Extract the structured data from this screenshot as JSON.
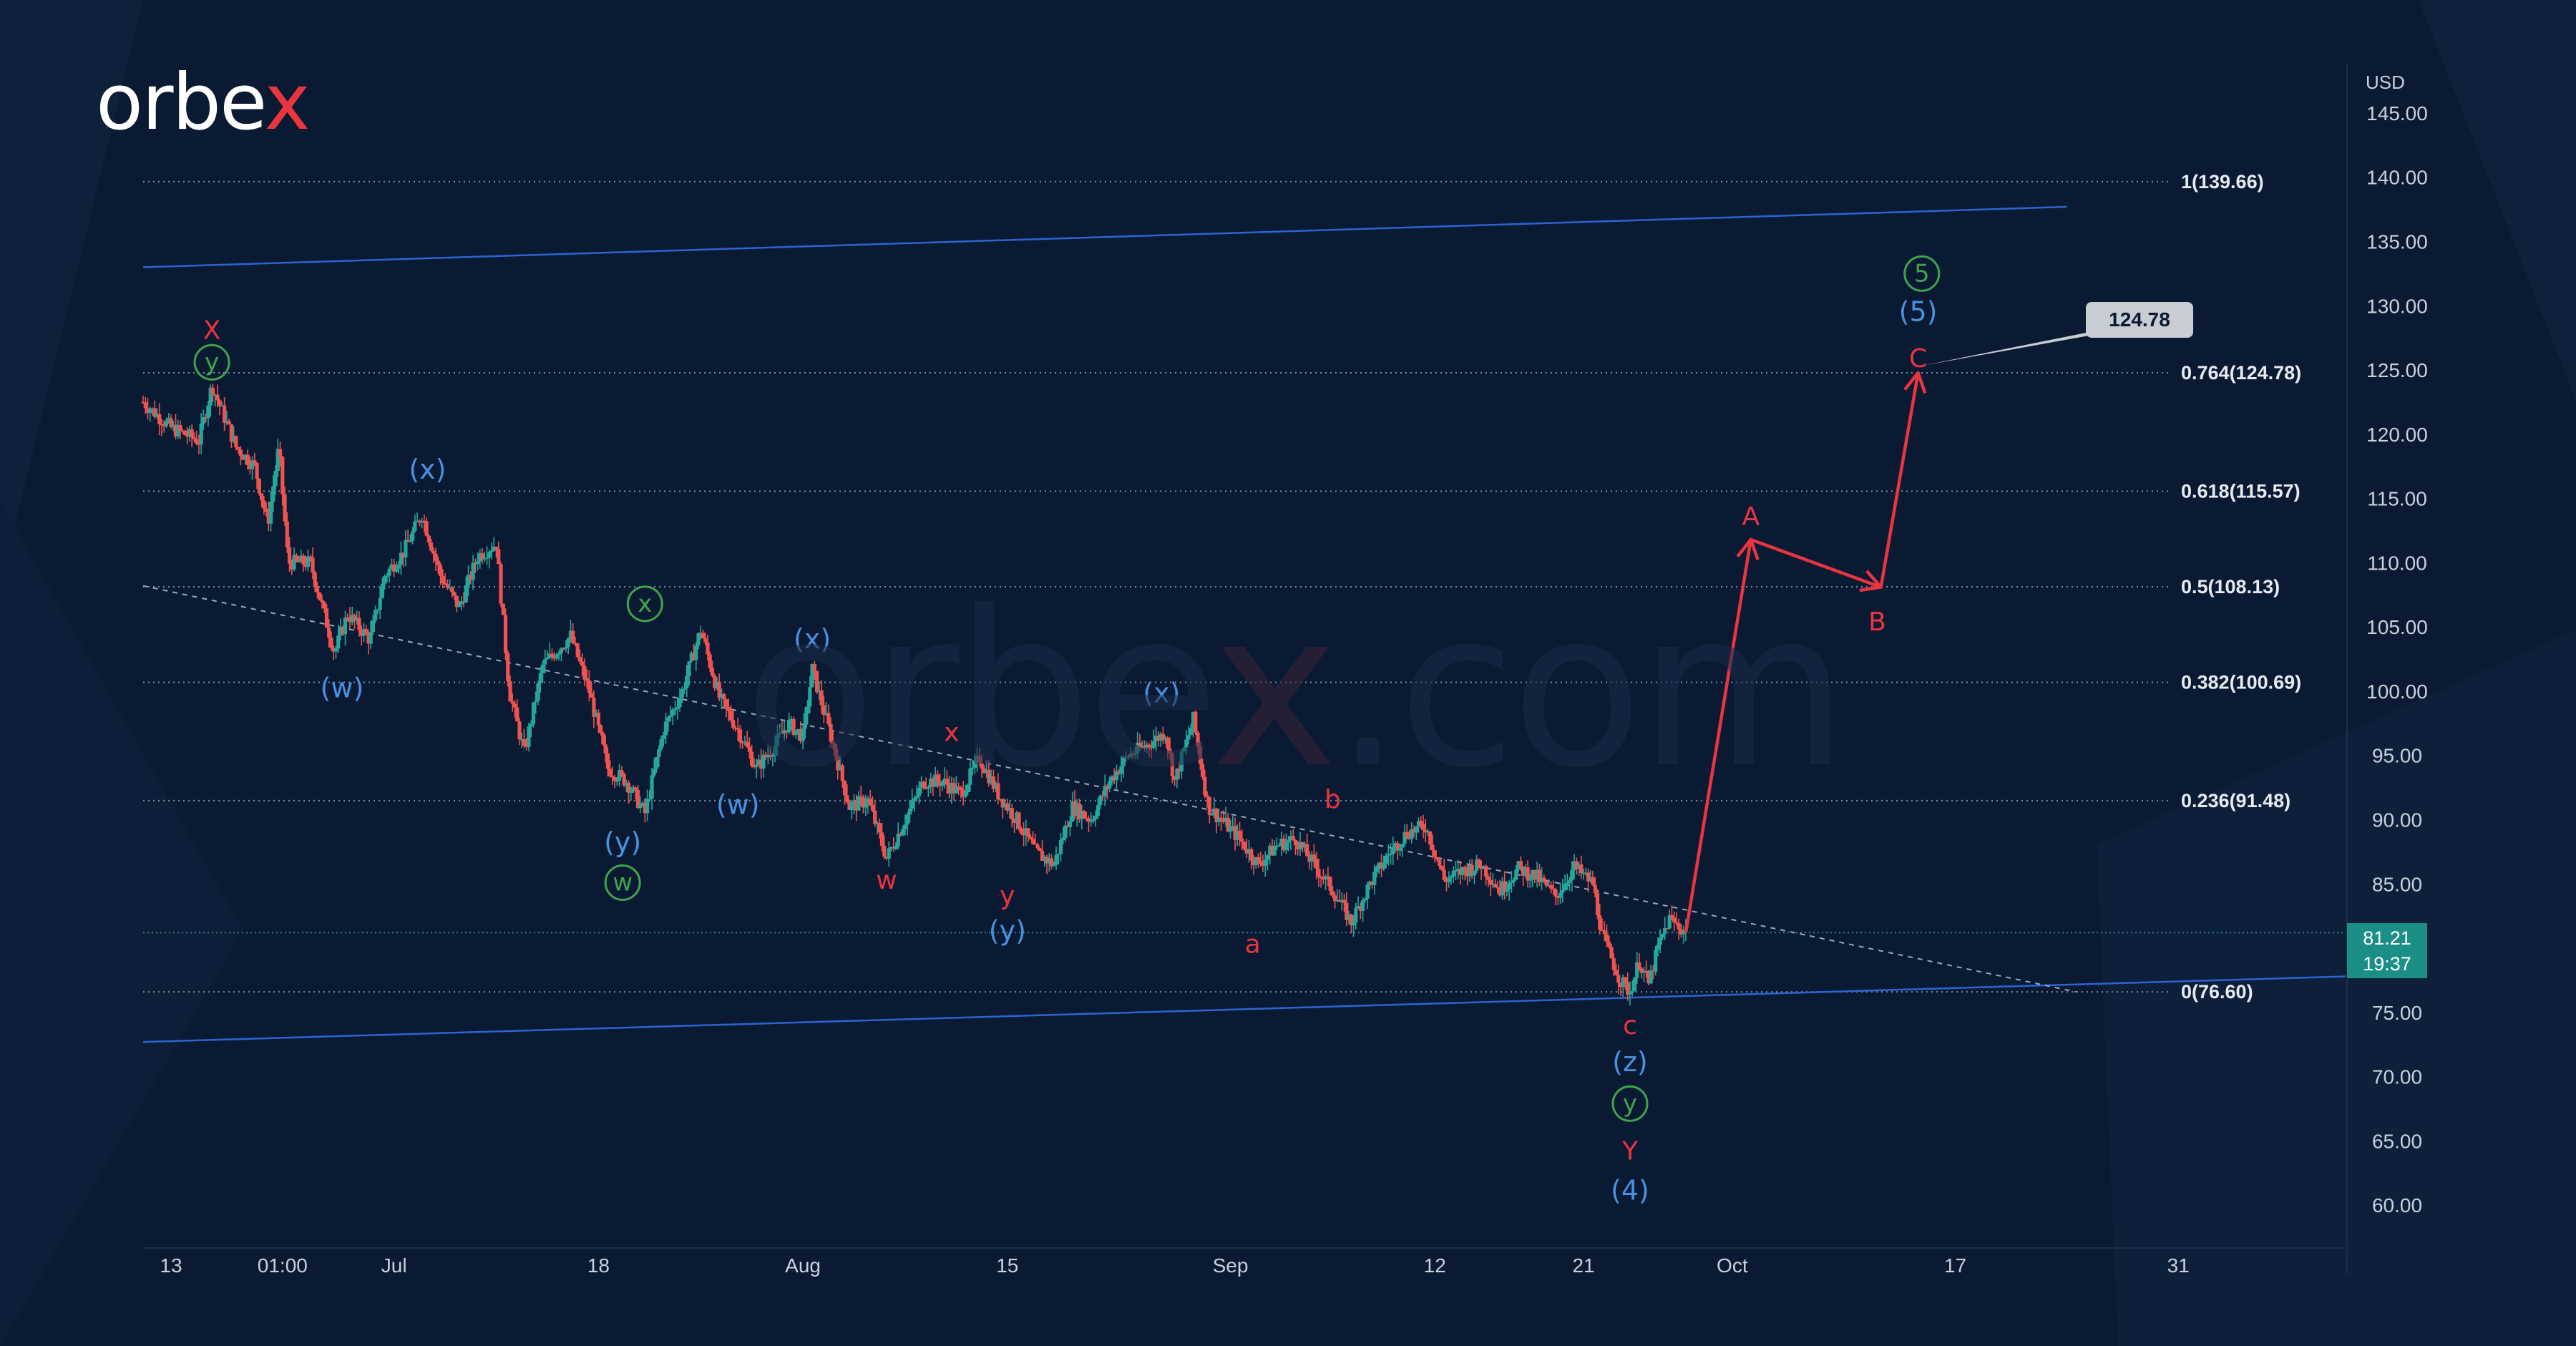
{
  "brand": {
    "logo_main": "orbe",
    "logo_x": "x",
    "watermark_main": "orbe",
    "watermark_x": "x",
    "watermark_tail": ".com"
  },
  "axis": {
    "currency": "USD"
  },
  "price_tag": {
    "price": "81.21",
    "countdown": "19:37"
  },
  "target_tag": {
    "label": "124.78",
    "price": 124.78
  },
  "colors": {
    "background": "#0b1a33",
    "channel": "#2a64d6",
    "projection": "#e9353f",
    "wave_green": "#3fa34d",
    "wave_blue": "#4a90e2",
    "wave_red": "#e9353f",
    "candle_up": "#26a69a",
    "candle_down": "#ef5350",
    "price_line": "#1b8f86"
  },
  "chart_data": {
    "type": "line",
    "title": "",
    "xlabel": "",
    "ylabel": "",
    "ylim": [
      57,
      146
    ],
    "y_ticks": [
      "60.00",
      "65.00",
      "70.00",
      "75.00",
      "80.00",
      "85.00",
      "90.00",
      "95.00",
      "100.00",
      "105.00",
      "110.00",
      "115.00",
      "120.00",
      "125.00",
      "130.00",
      "135.00",
      "140.00",
      "145.00"
    ],
    "y_tick_values": [
      60,
      65,
      70,
      75,
      80,
      85,
      90,
      95,
      100,
      105,
      110,
      115,
      120,
      125,
      130,
      135,
      140,
      145
    ],
    "x_ticks": [
      "13",
      "01:00",
      "Jul",
      "18",
      "Aug",
      "15",
      "Sep",
      "12",
      "21",
      "Oct",
      "17",
      "31"
    ],
    "x_tick_days": [
      0,
      6,
      12,
      23,
      34,
      45,
      57,
      68,
      76,
      84,
      96,
      108
    ],
    "x_range_days": [
      -1.5,
      117
    ],
    "grid": false,
    "fib_levels": [
      {
        "label": "1(139.66)",
        "price": 139.66
      },
      {
        "label": "0.764(124.78)",
        "price": 124.78
      },
      {
        "label": "0.618(115.57)",
        "price": 115.57
      },
      {
        "label": "0.5(108.13)",
        "price": 108.13
      },
      {
        "label": "0.382(100.69)",
        "price": 100.69
      },
      {
        "label": "0.236(91.48)",
        "price": 91.48
      },
      {
        "label": "0(76.60)",
        "price": 76.6
      }
    ],
    "current_price": 81.21,
    "channel_upper": {
      "start": [
        -1.5,
        133
      ],
      "end": [
        102,
        137.7
      ]
    },
    "channel_lower": {
      "start": [
        -1.5,
        72.7
      ],
      "end": [
        117,
        77.8
      ]
    },
    "trend_dashed": {
      "start": [
        -1.5,
        108.2
      ],
      "end": [
        102.5,
        76.6
      ]
    },
    "price_path": [
      [
        -1.5,
        122.5
      ],
      [
        0,
        120.5
      ],
      [
        1.5,
        119.5
      ],
      [
        2.2,
        123.8
      ],
      [
        3.5,
        119
      ],
      [
        4.5,
        117.5
      ],
      [
        5.2,
        113
      ],
      [
        5.8,
        119
      ],
      [
        6.3,
        110
      ],
      [
        7.5,
        110
      ],
      [
        8.8,
        103
      ],
      [
        9.5,
        106
      ],
      [
        10.7,
        104
      ],
      [
        11.5,
        109
      ],
      [
        12.5,
        110.8
      ],
      [
        13.5,
        113.8
      ],
      [
        14.5,
        109
      ],
      [
        15.5,
        106.5
      ],
      [
        16.5,
        110.5
      ],
      [
        17.5,
        111.5
      ],
      [
        18.2,
        100
      ],
      [
        19,
        95.2
      ],
      [
        20,
        102
      ],
      [
        21.5,
        104.3
      ],
      [
        22.5,
        100
      ],
      [
        23.5,
        94
      ],
      [
        24.5,
        93
      ],
      [
        25.5,
        90.5
      ],
      [
        26.5,
        97
      ],
      [
        27.5,
        100
      ],
      [
        28.5,
        104.8
      ],
      [
        29.5,
        99.5
      ],
      [
        30.5,
        97
      ],
      [
        31.5,
        94
      ],
      [
        32.5,
        95.8
      ],
      [
        33.2,
        97.5
      ],
      [
        34,
        96.5
      ],
      [
        34.5,
        101.7
      ],
      [
        35.5,
        96.5
      ],
      [
        36.5,
        91
      ],
      [
        37.5,
        91.5
      ],
      [
        38.5,
        87
      ],
      [
        39.5,
        90
      ],
      [
        40.5,
        93
      ],
      [
        41.5,
        93
      ],
      [
        42.5,
        92
      ],
      [
        43.5,
        94.8
      ],
      [
        44.5,
        92
      ],
      [
        45.5,
        90
      ],
      [
        46.5,
        87.5
      ],
      [
        47.5,
        86.5
      ],
      [
        48.5,
        91
      ],
      [
        49.5,
        90
      ],
      [
        50.5,
        93
      ],
      [
        51.5,
        95
      ],
      [
        52.5,
        95.8
      ],
      [
        53.5,
        96.8
      ],
      [
        54,
        93
      ],
      [
        55,
        97.8
      ],
      [
        55.8,
        91
      ],
      [
        56.5,
        90
      ],
      [
        57.5,
        88.5
      ],
      [
        58.5,
        86.5
      ],
      [
        59.5,
        88
      ],
      [
        60.5,
        88.5
      ],
      [
        61.5,
        86.5
      ],
      [
        62.5,
        84.5
      ],
      [
        63.5,
        82
      ],
      [
        64.5,
        85
      ],
      [
        65.5,
        87.3
      ],
      [
        66.5,
        89
      ],
      [
        67.5,
        89.5
      ],
      [
        68,
        87.5
      ],
      [
        68.5,
        85.3
      ],
      [
        69.5,
        86
      ],
      [
        70.5,
        86.5
      ],
      [
        71.5,
        84.5
      ],
      [
        72.5,
        86.2
      ],
      [
        73.5,
        85.5
      ],
      [
        74.5,
        84
      ],
      [
        75.5,
        86.3
      ],
      [
        76.5,
        85
      ],
      [
        77,
        81
      ],
      [
        78,
        77.4
      ],
      [
        78.5,
        76.6
      ],
      [
        79,
        79
      ],
      [
        79.5,
        77.2
      ],
      [
        80,
        80
      ],
      [
        80.6,
        82.3
      ],
      [
        81.5,
        81.2
      ]
    ],
    "projection_path": [
      [
        81.5,
        81.2
      ],
      [
        85,
        111.8
      ],
      [
        92,
        108.1
      ],
      [
        94,
        124.78
      ]
    ],
    "wave_labels": [
      {
        "text": "X",
        "color": "red",
        "day": 2.2,
        "price": 128.1,
        "style": "letter"
      },
      {
        "text": "y",
        "color": "green",
        "day": 2.2,
        "price": 125.6,
        "style": "circle"
      },
      {
        "text": "(x)",
        "color": "blue",
        "day": 13.8,
        "price": 117.2,
        "style": "plain"
      },
      {
        "text": "(w)",
        "color": "blue",
        "day": 9.2,
        "price": 100.2,
        "style": "plain"
      },
      {
        "text": "x",
        "color": "green",
        "day": 25.5,
        "price": 106.8,
        "style": "circle"
      },
      {
        "text": "(y)",
        "color": "blue",
        "day": 24.3,
        "price": 88.2,
        "style": "plain"
      },
      {
        "text": "w",
        "color": "green",
        "day": 24.3,
        "price": 85.1,
        "style": "circle"
      },
      {
        "text": "(x)",
        "color": "blue",
        "day": 34.5,
        "price": 104.0,
        "style": "plain"
      },
      {
        "text": "(w)",
        "color": "blue",
        "day": 30.5,
        "price": 91.1,
        "style": "plain"
      },
      {
        "text": "x",
        "color": "red",
        "day": 42,
        "price": 96.8,
        "style": "letter"
      },
      {
        "text": "w",
        "color": "red",
        "day": 38.5,
        "price": 85.3,
        "style": "letter"
      },
      {
        "text": "y",
        "color": "red",
        "day": 45,
        "price": 84.1,
        "style": "letter"
      },
      {
        "text": "(y)",
        "color": "blue",
        "day": 45,
        "price": 81.3,
        "style": "plain"
      },
      {
        "text": "(x)",
        "color": "blue",
        "day": 53.3,
        "price": 99.8,
        "style": "plain"
      },
      {
        "text": "b",
        "color": "red",
        "day": 62.5,
        "price": 91.6,
        "style": "letter"
      },
      {
        "text": "a",
        "color": "red",
        "day": 58.2,
        "price": 80.3,
        "style": "letter"
      },
      {
        "text": "c",
        "color": "red",
        "day": 78.5,
        "price": 74.0,
        "style": "letter"
      },
      {
        "text": "(z)",
        "color": "blue",
        "day": 78.5,
        "price": 71.1,
        "style": "plain"
      },
      {
        "text": "y",
        "color": "green",
        "day": 78.5,
        "price": 67.9,
        "style": "circle"
      },
      {
        "text": "Y",
        "color": "red",
        "day": 78.5,
        "price": 64.2,
        "style": "letter"
      },
      {
        "text": "(4)",
        "color": "blue",
        "day": 78.5,
        "price": 61.1,
        "style": "plain"
      },
      {
        "text": "A",
        "color": "red",
        "day": 85,
        "price": 113.6,
        "style": "letter"
      },
      {
        "text": "B",
        "color": "red",
        "day": 91.8,
        "price": 105.4,
        "style": "letter"
      },
      {
        "text": "C",
        "color": "red",
        "day": 94,
        "price": 125.9,
        "style": "letter"
      },
      {
        "text": "(5)",
        "color": "blue",
        "day": 94,
        "price": 129.5,
        "style": "plain"
      },
      {
        "text": "5",
        "color": "green",
        "day": 94.2,
        "price": 132.5,
        "style": "circle"
      }
    ]
  }
}
